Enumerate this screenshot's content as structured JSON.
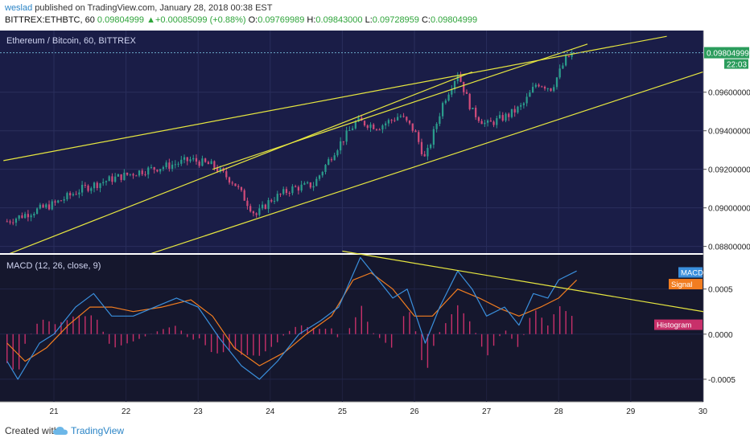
{
  "header": {
    "user": "weslad",
    "published": " published on TradingView.com, January 28, 2018 00:38 EST",
    "symbol": "BITTREX:ETHBTC, 60",
    "last": "0.09804999",
    "change": "+0.00085099 (+0.88%)",
    "o_label": "O:",
    "o": "0.09769989",
    "h_label": "H:",
    "h": "0.09843000",
    "l_label": "L:",
    "l": "0.09728959",
    "c_label": "C:",
    "c": "0.09804999"
  },
  "footer": {
    "created": "Created with",
    "brand": "TradingView"
  },
  "colors": {
    "bg": "#1a1d47",
    "macd_bg": "#15172d",
    "up": "#2b9c8c",
    "down": "#d04b7a",
    "trend": "#e6e640",
    "macd_line": "#3a8fdc",
    "signal_line": "#f27d20",
    "hist": "#c8306a"
  },
  "chart_data": [
    {
      "type": "candlestick",
      "title": "Ethereum / Bitcoin, 60, BITTREX",
      "x_ticks": [
        "21",
        "22",
        "23",
        "24",
        "25",
        "26",
        "27",
        "28",
        "29",
        "30"
      ],
      "y_ticks": [
        "0.09600000",
        "0.09400000",
        "0.09200000",
        "0.09000000",
        "0.08800000"
      ],
      "y_tick_values": [
        0.096,
        0.094,
        0.092,
        0.09,
        0.088
      ],
      "ylim": [
        0.08765,
        0.0992
      ],
      "last_price_label": "0.09804999",
      "countdown_label": "22:03",
      "close_series_approx": [
        {
          "day": 20.35,
          "v": 0.0893
        },
        {
          "day": 20.7,
          "v": 0.0898
        },
        {
          "day": 21.0,
          "v": 0.0902
        },
        {
          "day": 21.4,
          "v": 0.091
        },
        {
          "day": 21.8,
          "v": 0.0915
        },
        {
          "day": 22.2,
          "v": 0.0919
        },
        {
          "day": 22.6,
          "v": 0.0922
        },
        {
          "day": 22.9,
          "v": 0.0925
        },
        {
          "day": 23.2,
          "v": 0.0922
        },
        {
          "day": 23.5,
          "v": 0.0913
        },
        {
          "day": 23.8,
          "v": 0.0896
        },
        {
          "day": 24.0,
          "v": 0.0904
        },
        {
          "day": 24.3,
          "v": 0.091
        },
        {
          "day": 24.6,
          "v": 0.0912
        },
        {
          "day": 24.9,
          "v": 0.093
        },
        {
          "day": 25.2,
          "v": 0.0945
        },
        {
          "day": 25.5,
          "v": 0.0942
        },
        {
          "day": 25.8,
          "v": 0.0948
        },
        {
          "day": 26.0,
          "v": 0.094
        },
        {
          "day": 26.15,
          "v": 0.0925
        },
        {
          "day": 26.4,
          "v": 0.0955
        },
        {
          "day": 26.6,
          "v": 0.097
        },
        {
          "day": 26.8,
          "v": 0.095
        },
        {
          "day": 27.0,
          "v": 0.0943
        },
        {
          "day": 27.3,
          "v": 0.0948
        },
        {
          "day": 27.5,
          "v": 0.0953
        },
        {
          "day": 27.7,
          "v": 0.0965
        },
        {
          "day": 27.9,
          "v": 0.0962
        },
        {
          "day": 28.1,
          "v": 0.0977
        },
        {
          "day": 28.2,
          "v": 0.09805
        }
      ],
      "trendlines_approx": [
        {
          "from": {
            "day": 20.3,
            "v": 0.09245
          },
          "to": {
            "day": 29.5,
            "v": 0.0989
          }
        },
        {
          "from": {
            "day": 20.3,
            "v": 0.0875
          },
          "to": {
            "day": 26.8,
            "v": 0.09705
          }
        },
        {
          "from": {
            "day": 22.0,
            "v": 0.0872
          },
          "to": {
            "day": 30.0,
            "v": 0.09705
          }
        },
        {
          "from": {
            "day": 23.2,
            "v": 0.092
          },
          "to": {
            "day": 28.4,
            "v": 0.0985
          }
        }
      ]
    },
    {
      "type": "line",
      "title": "MACD (12, 26, close, 9)",
      "y_ticks": [
        "0.0005",
        "0.0000",
        "-0.0005"
      ],
      "y_tick_values": [
        0.0005,
        0.0,
        -0.0005
      ],
      "ylim": [
        -0.00075,
        0.00088
      ],
      "legend": [
        "MACD",
        "Signal",
        "Histogram"
      ],
      "series": [
        {
          "name": "MACD",
          "points": [
            {
              "day": 20.35,
              "v": -0.0003
            },
            {
              "day": 20.5,
              "v": -0.0005
            },
            {
              "day": 20.8,
              "v": -0.0001
            },
            {
              "day": 21.0,
              "v": 0.0
            },
            {
              "day": 21.3,
              "v": 0.0003
            },
            {
              "day": 21.55,
              "v": 0.00045
            },
            {
              "day": 21.8,
              "v": 0.0002
            },
            {
              "day": 22.1,
              "v": 0.0002
            },
            {
              "day": 22.4,
              "v": 0.0003
            },
            {
              "day": 22.7,
              "v": 0.0004
            },
            {
              "day": 23.0,
              "v": 0.0003
            },
            {
              "day": 23.3,
              "v": -5e-05
            },
            {
              "day": 23.6,
              "v": -0.00035
            },
            {
              "day": 23.85,
              "v": -0.0005
            },
            {
              "day": 24.1,
              "v": -0.0003
            },
            {
              "day": 24.4,
              "v": 0.0
            },
            {
              "day": 24.7,
              "v": 0.00015
            },
            {
              "day": 24.95,
              "v": 0.0003
            },
            {
              "day": 25.25,
              "v": 0.00085
            },
            {
              "day": 25.5,
              "v": 0.0006
            },
            {
              "day": 25.7,
              "v": 0.0004
            },
            {
              "day": 25.9,
              "v": 0.0005
            },
            {
              "day": 26.15,
              "v": -0.0001
            },
            {
              "day": 26.35,
              "v": 0.0003
            },
            {
              "day": 26.6,
              "v": 0.0007
            },
            {
              "day": 26.8,
              "v": 0.0005
            },
            {
              "day": 27.0,
              "v": 0.0002
            },
            {
              "day": 27.25,
              "v": 0.0003
            },
            {
              "day": 27.45,
              "v": 0.0001
            },
            {
              "day": 27.65,
              "v": 0.00045
            },
            {
              "day": 27.85,
              "v": 0.0004
            },
            {
              "day": 28.0,
              "v": 0.0006
            },
            {
              "day": 28.25,
              "v": 0.0007
            }
          ]
        },
        {
          "name": "Signal",
          "points": [
            {
              "day": 20.35,
              "v": -0.0001
            },
            {
              "day": 20.6,
              "v": -0.0003
            },
            {
              "day": 20.9,
              "v": -0.00015
            },
            {
              "day": 21.2,
              "v": 0.0001
            },
            {
              "day": 21.5,
              "v": 0.0003
            },
            {
              "day": 21.8,
              "v": 0.0003
            },
            {
              "day": 22.1,
              "v": 0.00025
            },
            {
              "day": 22.5,
              "v": 0.0003
            },
            {
              "day": 22.9,
              "v": 0.00038
            },
            {
              "day": 23.2,
              "v": 0.0002
            },
            {
              "day": 23.5,
              "v": -0.00015
            },
            {
              "day": 23.85,
              "v": -0.00035
            },
            {
              "day": 24.2,
              "v": -0.0002
            },
            {
              "day": 24.5,
              "v": 0.0
            },
            {
              "day": 24.85,
              "v": 0.0002
            },
            {
              "day": 25.15,
              "v": 0.0006
            },
            {
              "day": 25.4,
              "v": 0.00068
            },
            {
              "day": 25.7,
              "v": 0.0005
            },
            {
              "day": 26.0,
              "v": 0.0002
            },
            {
              "day": 26.25,
              "v": 0.0002
            },
            {
              "day": 26.6,
              "v": 0.0005
            },
            {
              "day": 26.9,
              "v": 0.0004
            },
            {
              "day": 27.2,
              "v": 0.00028
            },
            {
              "day": 27.45,
              "v": 0.0002
            },
            {
              "day": 27.75,
              "v": 0.0003
            },
            {
              "day": 28.0,
              "v": 0.0004
            },
            {
              "day": 28.25,
              "v": 0.0006
            }
          ]
        }
      ]
    }
  ]
}
